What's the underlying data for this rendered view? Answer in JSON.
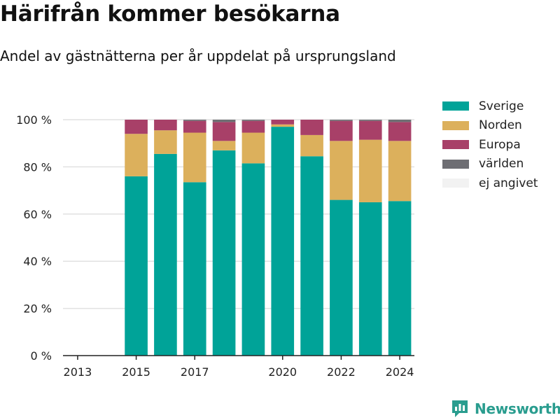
{
  "header": {
    "title": "Härifrån kommer besökarna",
    "subtitle": "Andel av gästnätterna per år uppdelat på ursprungsland"
  },
  "brand": {
    "name": "Newsworthy",
    "icon": "newsworthy-logo-icon",
    "color": "#2a9d8f"
  },
  "chart_data": {
    "type": "bar",
    "stacked": true,
    "x": [
      2013,
      2014,
      2015,
      2016,
      2017,
      2018,
      2019,
      2020,
      2021,
      2022,
      2023,
      2024
    ],
    "x_tick_labels": [
      "2013",
      "2015",
      "2017",
      "2020",
      "2022",
      "2024"
    ],
    "y_ticks": [
      0,
      20,
      40,
      60,
      80,
      100
    ],
    "y_tick_labels": [
      "0 %",
      "20 %",
      "40 %",
      "60 %",
      "80 %",
      "100 %"
    ],
    "ylim": [
      0,
      100
    ],
    "grid": true,
    "legend_position": "right",
    "series": [
      {
        "name": "Sverige",
        "color": "#00a398",
        "values": [
          null,
          null,
          76,
          85.5,
          73.5,
          87,
          81.5,
          97,
          84.5,
          66,
          65,
          65.5
        ]
      },
      {
        "name": "Norden",
        "color": "#dcb05c",
        "values": [
          null,
          null,
          18,
          10,
          21,
          4,
          13,
          1,
          9,
          25,
          26.5,
          25.5
        ]
      },
      {
        "name": "Europa",
        "color": "#a84068",
        "values": [
          null,
          null,
          6,
          4.5,
          5,
          8,
          5,
          2,
          6.5,
          8.5,
          8,
          8
        ]
      },
      {
        "name": "världen",
        "color": "#6e6e73",
        "values": [
          null,
          null,
          0,
          0,
          0.5,
          1,
          0.5,
          0,
          0,
          0.5,
          0.5,
          1
        ]
      },
      {
        "name": "ej angivet",
        "color": "#f2f2f2",
        "values": [
          null,
          null,
          0,
          0,
          0,
          0,
          0,
          0,
          0,
          0,
          0,
          0
        ]
      }
    ]
  }
}
